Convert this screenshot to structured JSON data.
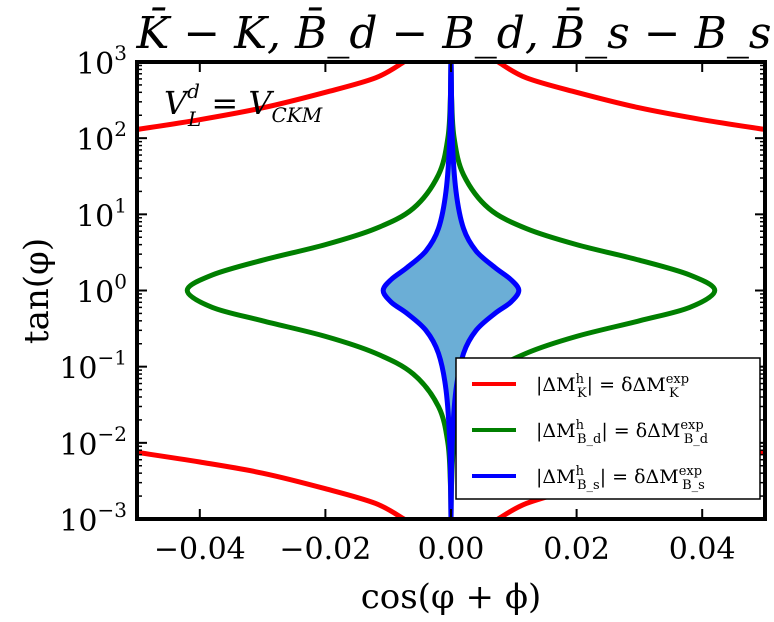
{
  "chart_data": {
    "type": "line",
    "title": "K̄ − K, B̄_d − B_d, B̄_s − B_s",
    "xlabel": "cos(φ + ϕ)",
    "ylabel": "tan(φ)",
    "xlim": [
      -0.05,
      0.05
    ],
    "ylim": [
      0.001,
      1000
    ],
    "yscale": "log",
    "grid": false,
    "x_ticks": [
      {
        "value": -0.04,
        "label": "−0.04"
      },
      {
        "value": -0.02,
        "label": "−0.02"
      },
      {
        "value": 0.0,
        "label": "0.00"
      },
      {
        "value": 0.02,
        "label": "0.02"
      },
      {
        "value": 0.04,
        "label": "0.04"
      }
    ],
    "y_ticks": [
      {
        "value": 0.001,
        "label": "10",
        "exp": "−3"
      },
      {
        "value": 0.01,
        "label": "10",
        "exp": "−2"
      },
      {
        "value": 0.1,
        "label": "10",
        "exp": "−1"
      },
      {
        "value": 1,
        "label": "10",
        "exp": "0"
      },
      {
        "value": 10,
        "label": "10",
        "exp": "1"
      },
      {
        "value": 100,
        "label": "10",
        "exp": "2"
      },
      {
        "value": 1000,
        "label": "10",
        "exp": "3"
      }
    ],
    "annotation": {
      "text": "V",
      "sup": "d",
      "sub": "L",
      "rest": " = V",
      "rest_sub": "CKM"
    },
    "legend_position": "lower-right",
    "series": [
      {
        "name": "|ΔM_K^h| = δΔM_K^exp",
        "legend": {
          "lhs": "|ΔM",
          "sup": "h",
          "sub": "K",
          "mid": "| = δΔM",
          "rsup": "exp",
          "rsub": "K"
        },
        "color": "#ff0000",
        "curves": [
          [
            [
              -0.05,
              130
            ],
            [
              -0.04,
              175
            ],
            [
              -0.03,
              250
            ],
            [
              -0.02,
              400
            ],
            [
              -0.012,
              620
            ],
            [
              -0.0075,
              1000
            ]
          ],
          [
            [
              0.0075,
              1000
            ],
            [
              0.012,
              620
            ],
            [
              0.02,
              400
            ],
            [
              0.03,
              250
            ],
            [
              0.04,
              175
            ],
            [
              0.05,
              130
            ]
          ],
          [
            [
              -0.05,
              0.0075
            ],
            [
              -0.04,
              0.0056
            ],
            [
              -0.03,
              0.004
            ],
            [
              -0.02,
              0.0025
            ],
            [
              -0.012,
              0.0016
            ],
            [
              -0.0075,
              0.001
            ]
          ],
          [
            [
              0.0075,
              0.001
            ],
            [
              0.012,
              0.0016
            ],
            [
              0.02,
              0.0025
            ],
            [
              0.03,
              0.004
            ],
            [
              0.04,
              0.0056
            ],
            [
              0.05,
              0.0075
            ]
          ]
        ]
      },
      {
        "name": "|ΔM_Bd^h| = δΔM_Bd^exp",
        "legend": {
          "lhs": "|ΔM",
          "sup": "h",
          "sub": "B_d",
          "mid": "| = δΔM",
          "rsup": "exp",
          "rsub": "B_d"
        },
        "color": "#007f00",
        "curves": [
          [
            [
              0.0,
              0.001
            ],
            [
              0.0001,
              0.003
            ],
            [
              0.0005,
              0.01
            ],
            [
              0.002,
              0.03
            ],
            [
              0.006,
              0.08
            ],
            [
              0.012,
              0.15
            ],
            [
              0.02,
              0.25
            ],
            [
              0.03,
              0.4
            ],
            [
              0.038,
              0.6
            ],
            [
              0.042,
              1.0
            ],
            [
              0.038,
              1.6
            ],
            [
              0.03,
              2.5
            ],
            [
              0.02,
              4.0
            ],
            [
              0.012,
              6.5
            ],
            [
              0.006,
              12
            ],
            [
              0.002,
              33
            ],
            [
              0.0005,
              100
            ],
            [
              0.0001,
              330
            ],
            [
              0.0,
              1000
            ],
            [
              -0.0001,
              330
            ],
            [
              -0.0005,
              100
            ],
            [
              -0.002,
              33
            ],
            [
              -0.006,
              12
            ],
            [
              -0.012,
              6.5
            ],
            [
              -0.02,
              4.0
            ],
            [
              -0.03,
              2.5
            ],
            [
              -0.038,
              1.6
            ],
            [
              -0.042,
              1.0
            ],
            [
              -0.038,
              0.6
            ],
            [
              -0.03,
              0.4
            ],
            [
              -0.02,
              0.25
            ],
            [
              -0.012,
              0.15
            ],
            [
              -0.006,
              0.08
            ],
            [
              -0.002,
              0.03
            ],
            [
              -0.0005,
              0.01
            ],
            [
              -0.0001,
              0.003
            ],
            [
              0.0,
              0.001
            ]
          ]
        ]
      },
      {
        "name": "|ΔM_Bs^h| = δΔM_Bs^exp",
        "legend": {
          "lhs": "|ΔM",
          "sup": "h",
          "sub": "B_s",
          "mid": "| = δΔM",
          "rsup": "exp",
          "rsub": "B_s"
        },
        "color": "#0000ff",
        "fill": "#6baed6",
        "curves": [
          [
            [
              0.0,
              0.001
            ],
            [
              0.0002,
              0.01
            ],
            [
              0.0008,
              0.05
            ],
            [
              0.002,
              0.15
            ],
            [
              0.004,
              0.3
            ],
            [
              0.007,
              0.5
            ],
            [
              0.0095,
              0.7
            ],
            [
              0.0108,
              1.0
            ],
            [
              0.0095,
              1.4
            ],
            [
              0.007,
              2.0
            ],
            [
              0.004,
              3.3
            ],
            [
              0.002,
              6.5
            ],
            [
              0.0008,
              20
            ],
            [
              0.0002,
              100
            ],
            [
              0.0,
              1000
            ],
            [
              -0.0002,
              100
            ],
            [
              -0.0008,
              20
            ],
            [
              -0.002,
              6.5
            ],
            [
              -0.004,
              3.3
            ],
            [
              -0.007,
              2.0
            ],
            [
              -0.0095,
              1.4
            ],
            [
              -0.0108,
              1.0
            ],
            [
              -0.0095,
              0.7
            ],
            [
              -0.007,
              0.5
            ],
            [
              -0.004,
              0.3
            ],
            [
              -0.002,
              0.15
            ],
            [
              -0.0008,
              0.05
            ],
            [
              -0.0002,
              0.01
            ],
            [
              0.0,
              0.001
            ]
          ]
        ]
      }
    ]
  }
}
